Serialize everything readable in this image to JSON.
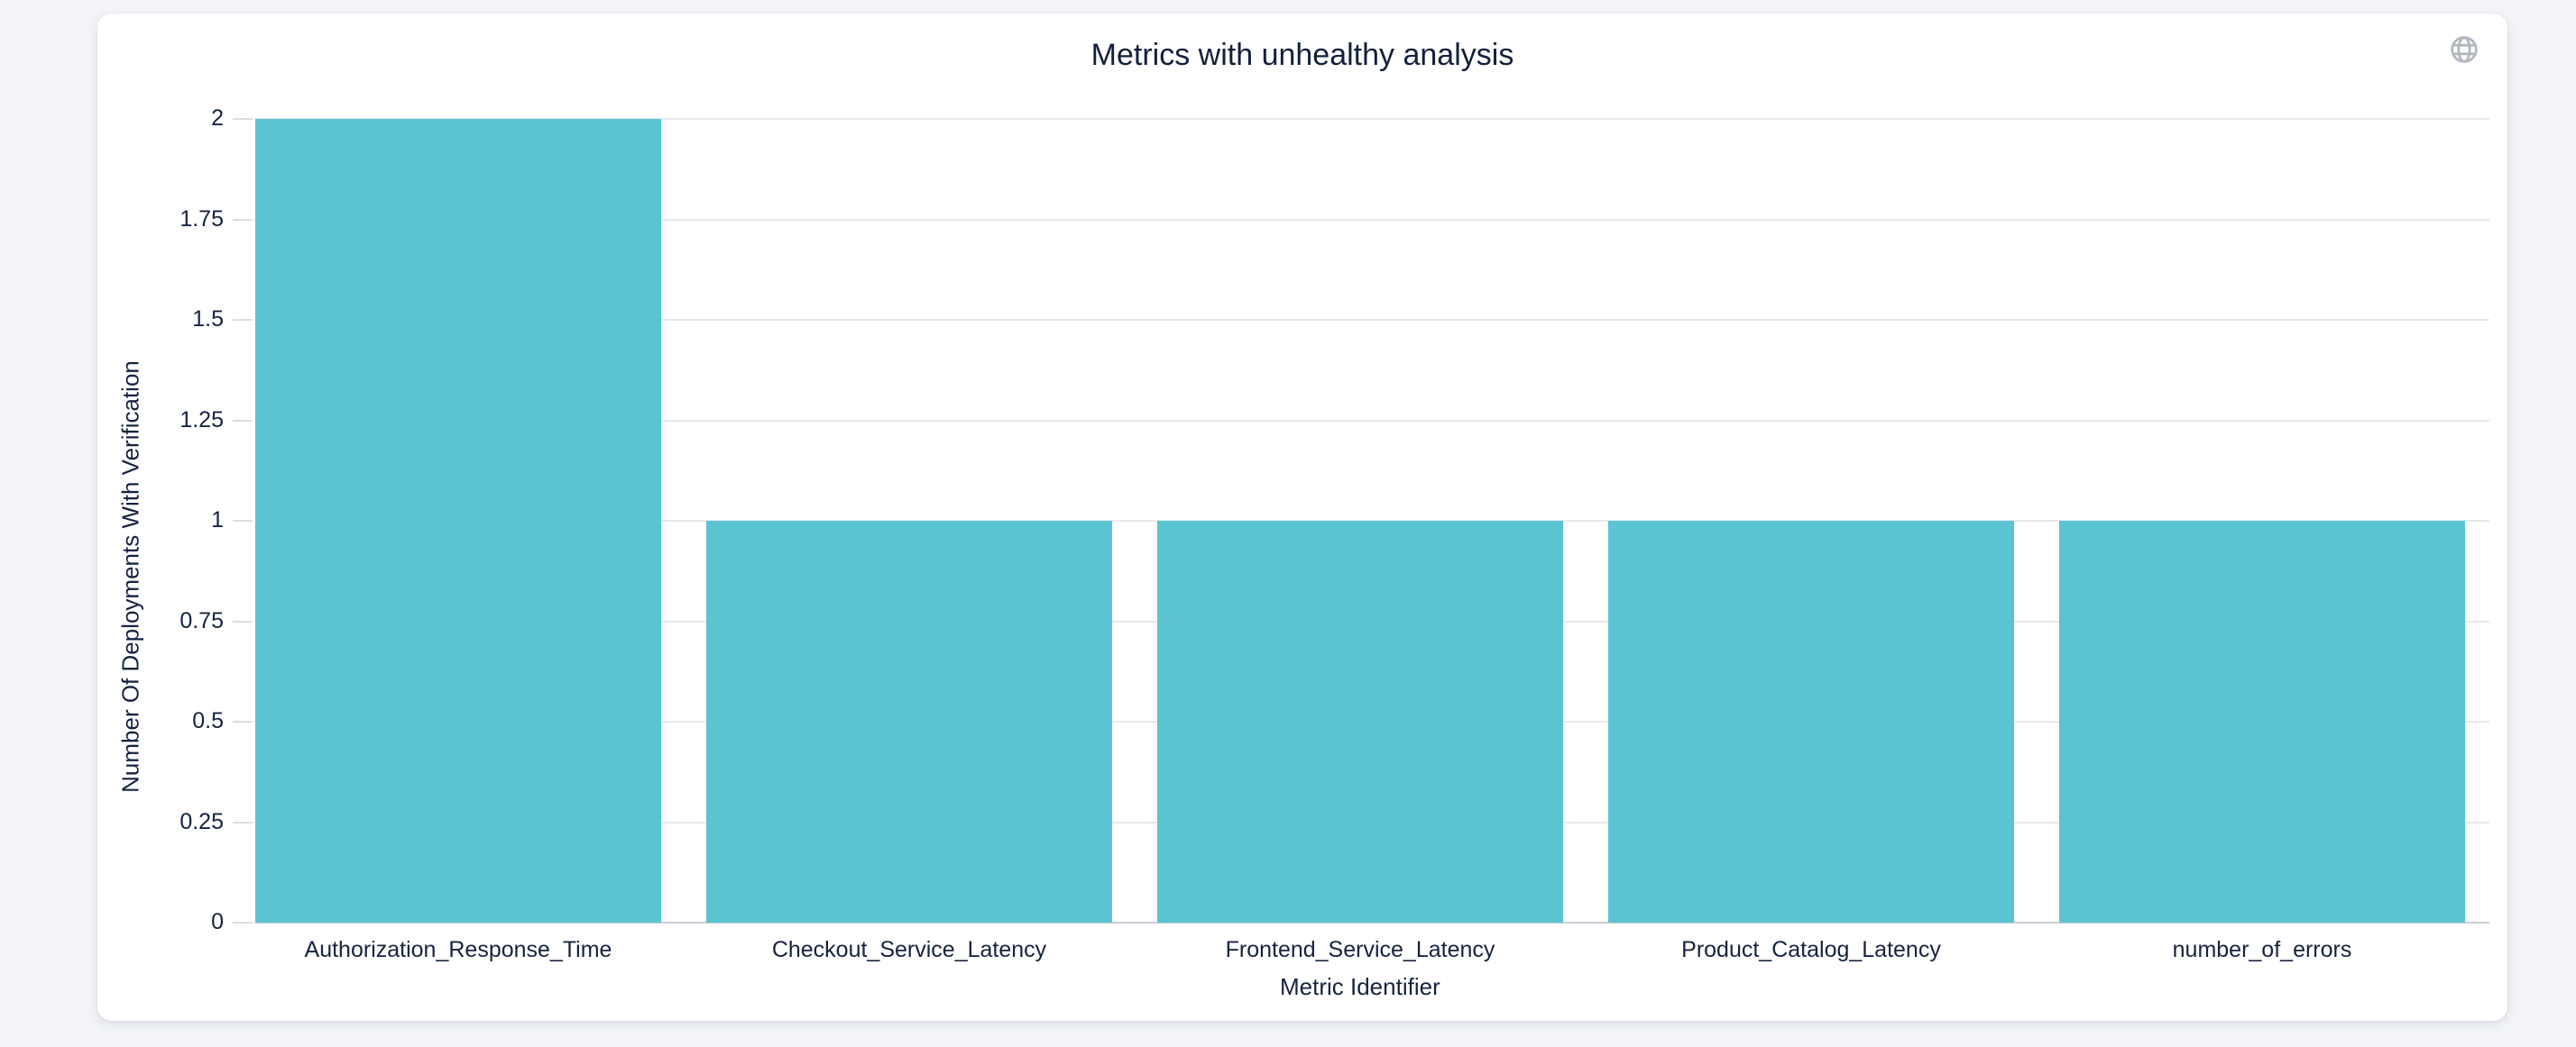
{
  "card": {
    "title": "Metrics with unhealthy analysis",
    "corner_icon": "globe-icon"
  },
  "colors": {
    "page_background": "#f3f5f8",
    "card_background": "#ffffff",
    "bar": "#5bc4d2",
    "title_text": "#13203c",
    "axis_text": "#16233f",
    "gridline": "#e8e9ec",
    "axis_line": "#c9d0d9",
    "tick_mark": "#dcdee3",
    "icon": "#b2b7c1"
  },
  "chart_data": {
    "type": "bar",
    "title": "Metrics with unhealthy analysis",
    "categories": [
      "Authorization_Response_Time",
      "Checkout_Service_Latency",
      "Frontend_Service_Latency",
      "Product_Catalog_Latency",
      "number_of_errors"
    ],
    "values": [
      2,
      1,
      1,
      1,
      1
    ],
    "xlabel": "Metric Identifier",
    "ylabel": "Number Of Deployments With Verification",
    "ylim": [
      0,
      2
    ],
    "yticks": [
      0,
      0.25,
      0.5,
      0.75,
      1,
      1.25,
      1.5,
      1.75,
      2
    ],
    "ytick_labels": [
      "0",
      "0.25",
      "0.5",
      "0.75",
      "1",
      "1.25",
      "1.5",
      "1.75",
      "2"
    ],
    "grid": true,
    "legend": "none",
    "bar_color": "#5bc4d2"
  }
}
